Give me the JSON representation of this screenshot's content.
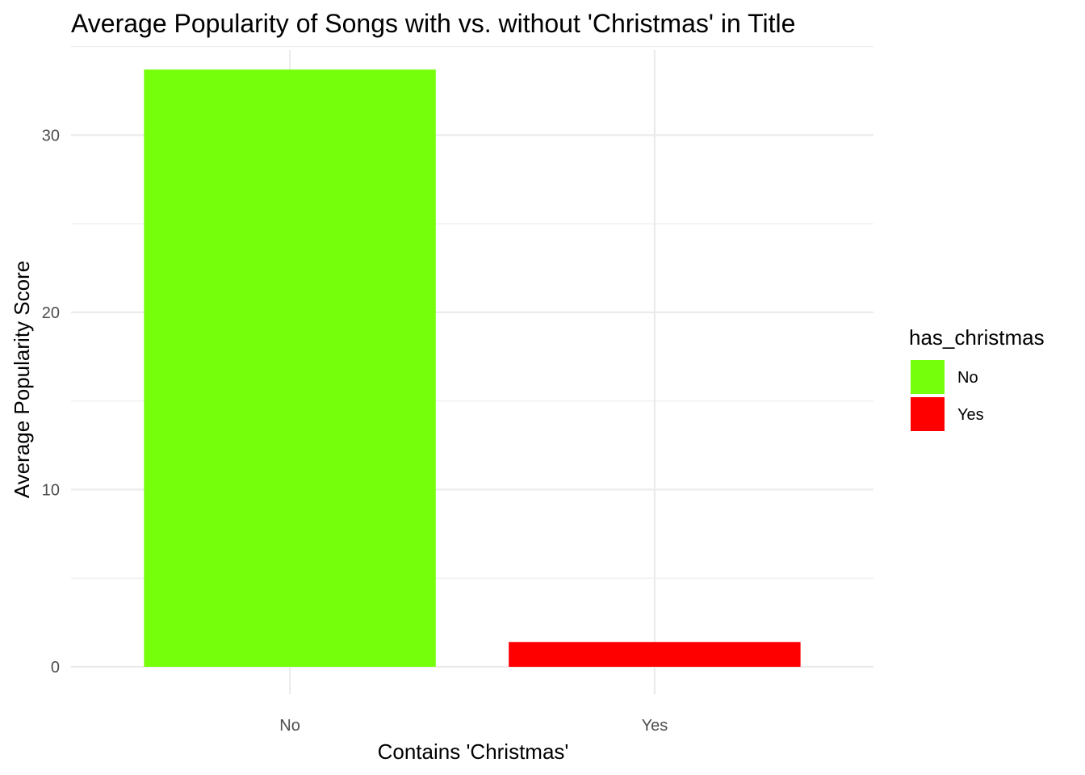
{
  "chart_data": {
    "type": "bar",
    "title": "Average Popularity of Songs with vs. without 'Christmas' in Title",
    "xlabel": "Contains 'Christmas'",
    "ylabel": "Average Popularity Score",
    "categories": [
      "No",
      "Yes"
    ],
    "values": [
      33.7,
      1.4
    ],
    "colors": [
      "#76FF0A",
      "#FF0000"
    ],
    "ylim": [
      0,
      35
    ],
    "yticks": [
      0,
      10,
      20,
      30
    ],
    "yticks_minor": [
      5,
      15,
      25,
      35
    ],
    "grid": true,
    "legend": {
      "title": "has_christmas",
      "position": "right",
      "entries": [
        {
          "label": "No",
          "color": "#76FF0A"
        },
        {
          "label": "Yes",
          "color": "#FF0000"
        }
      ]
    }
  }
}
